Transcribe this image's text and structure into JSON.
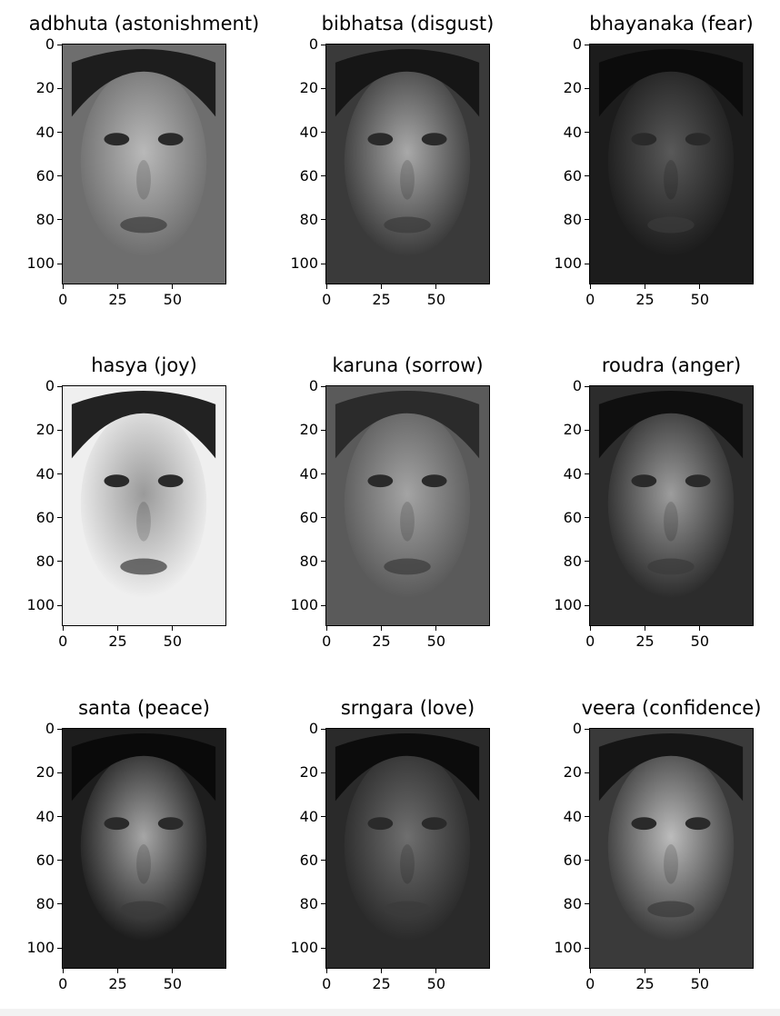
{
  "figure": {
    "panels": [
      {
        "title": "adbhuta (astonishment)",
        "image": "face-astonishment-photo"
      },
      {
        "title": "bibhatsa (disgust)",
        "image": "face-disgust-photo"
      },
      {
        "title": "bhayanaka (fear)",
        "image": "face-fear-photo"
      },
      {
        "title": "hasya (joy)",
        "image": "face-joy-photo"
      },
      {
        "title": "karuna (sorrow)",
        "image": "face-sorrow-photo"
      },
      {
        "title": "roudra (anger)",
        "image": "face-anger-photo"
      },
      {
        "title": "santa (peace)",
        "image": "face-peace-photo"
      },
      {
        "title": "srngara (love)",
        "image": "face-love-photo"
      },
      {
        "title": "veera (confidence)",
        "image": "face-confidence-photo"
      }
    ],
    "y_ticks": [
      "0",
      "20",
      "40",
      "60",
      "80",
      "100"
    ],
    "x_ticks": [
      "0",
      "25",
      "50"
    ],
    "colormap": "grayscale"
  }
}
